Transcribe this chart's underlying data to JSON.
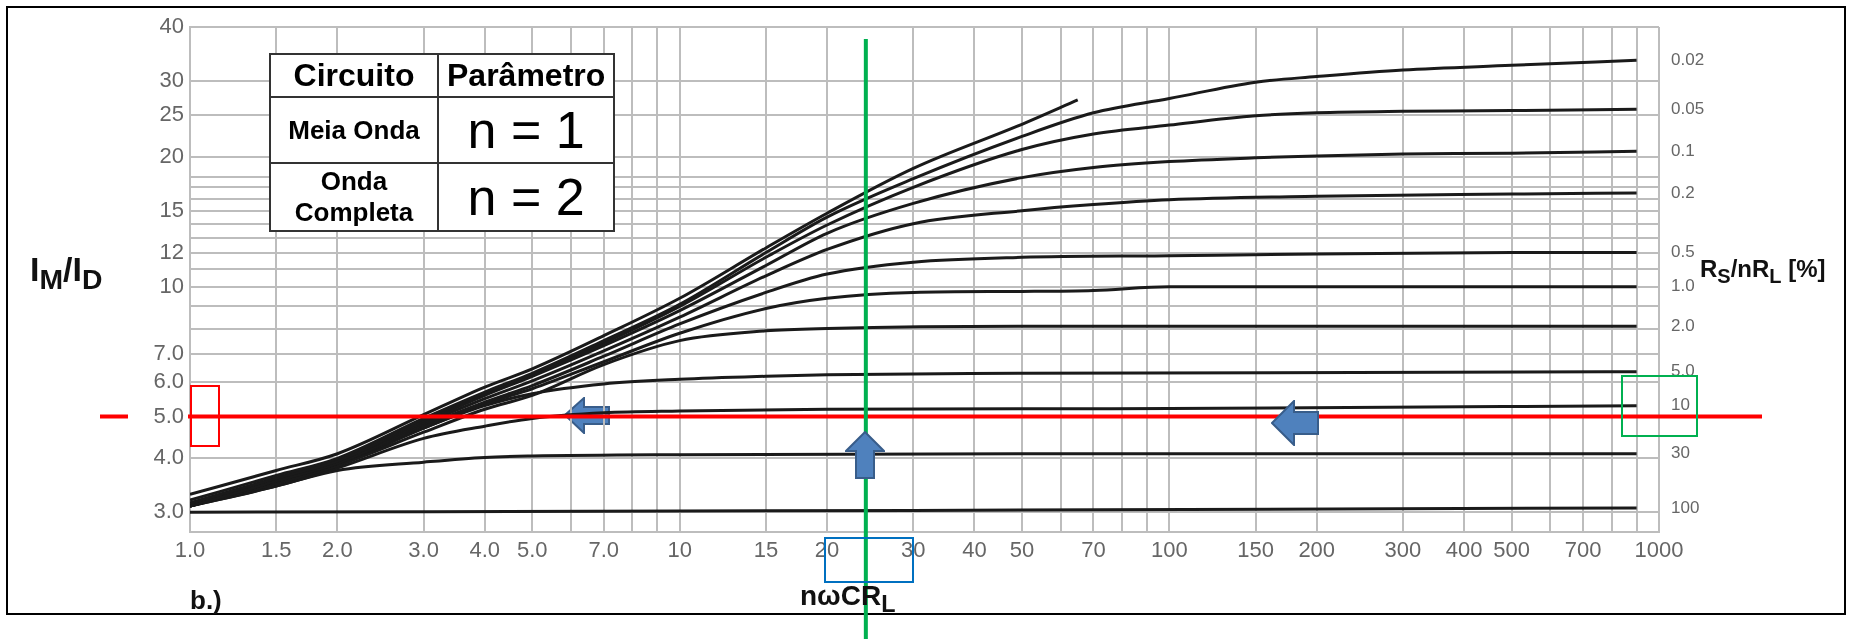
{
  "chart_data": {
    "type": "line",
    "xlabel": "nωCR$_{L}$",
    "ylabel": "I$_{M}$/I$_{D}$",
    "legend_title": "R$_{S}$/nR$_{L}$ [%]",
    "annotations": [
      "b.)",
      "Circuito",
      "Parâmetro",
      "Meia Onda",
      "n = 1",
      "Onda Completa",
      "n = 2"
    ],
    "log": "xy",
    "grid": true,
    "legend": false,
    "marker": "none",
    "line_style": "solid",
    "xlim": [
      1,
      1000
    ],
    "ylim": [
      2.7,
      40
    ],
    "xticks": [
      {
        "value": 1,
        "label": "1.0"
      },
      {
        "value": 1.5,
        "label": "1.5"
      },
      {
        "value": 2,
        "label": "2.0"
      },
      {
        "value": 3,
        "label": "3.0"
      },
      {
        "value": 4,
        "label": "4.0"
      },
      {
        "value": 5,
        "label": "5.0"
      },
      {
        "value": 6,
        "label": null
      },
      {
        "value": 7,
        "label": "7.0"
      },
      {
        "value": 8,
        "label": null
      },
      {
        "value": 9,
        "label": null
      },
      10,
      15,
      20,
      30,
      40,
      50,
      {
        "value": 60,
        "label": null
      },
      70,
      {
        "value": 80,
        "label": null
      },
      {
        "value": 90,
        "label": null
      },
      100,
      150,
      200,
      300,
      400,
      500,
      {
        "value": 600,
        "label": null
      },
      700,
      {
        "value": 800,
        "label": null
      },
      {
        "value": 900,
        "label": null
      },
      1000
    ],
    "yticks": [
      {
        "value": 3,
        "label": "3.0"
      },
      {
        "value": 4,
        "label": "4.0"
      },
      {
        "value": 5,
        "label": "5.0"
      },
      {
        "value": 6,
        "label": "6.0"
      },
      {
        "value": 7,
        "label": "7.0"
      },
      {
        "value": 8,
        "label": null
      },
      {
        "value": 9,
        "label": null
      },
      10,
      {
        "value": 11,
        "label": null
      },
      12,
      {
        "value": 13,
        "label": null
      },
      {
        "value": 14,
        "label": null
      },
      15,
      {
        "value": 16,
        "label": null
      },
      {
        "value": 17,
        "label": null
      },
      {
        "value": 18,
        "label": null
      },
      20,
      25,
      30,
      40
    ],
    "ref_lines": [
      {
        "axis": "y",
        "value": 5,
        "color": "#ff0000"
      },
      {
        "axis": "x",
        "value": 24,
        "color": "#00b050"
      }
    ],
    "series": [
      {
        "color": "#1a1a1a",
        "x": [
          1,
          1.5,
          2,
          3,
          4,
          5,
          7,
          10,
          15,
          20,
          30,
          50,
          65
        ],
        "values": [
          3.3,
          3.75,
          4.1,
          5.05,
          5.85,
          6.45,
          7.7,
          9.4,
          12.3,
          14.8,
          18.8,
          23.8,
          27.1
        ]
      },
      {
        "name": "0.02",
        "color": "#1a1a1a",
        "x": [
          1,
          1.5,
          2,
          3,
          4,
          5,
          7,
          10,
          15,
          20,
          30,
          50,
          70,
          100,
          150,
          200,
          300,
          500,
          900
        ],
        "values": [
          3.2,
          3.65,
          4.0,
          4.95,
          5.7,
          6.3,
          7.5,
          9.1,
          12.0,
          14.5,
          17.8,
          22.3,
          25.3,
          27.3,
          29.8,
          30.7,
          31.8,
          32.6,
          33.5
        ]
      },
      {
        "name": "0.05",
        "color": "#1a1a1a",
        "x": [
          1,
          1.5,
          2,
          3,
          4,
          5,
          7,
          10,
          15,
          20,
          30,
          50,
          70,
          100,
          150,
          200,
          300,
          500,
          900
        ],
        "values": [
          3.15,
          3.6,
          3.95,
          4.9,
          5.65,
          6.25,
          7.4,
          9.0,
          11.7,
          13.9,
          17.0,
          20.8,
          22.6,
          23.7,
          24.9,
          25.3,
          25.5,
          25.6,
          25.8
        ]
      },
      {
        "name": "0.1",
        "color": "#1a1a1a",
        "x": [
          1,
          1.5,
          2,
          3,
          4,
          5,
          7,
          10,
          15,
          20,
          30,
          50,
          70,
          100,
          150,
          200,
          300,
          500,
          900
        ],
        "values": [
          3.15,
          3.6,
          3.95,
          4.85,
          5.6,
          6.2,
          7.3,
          8.8,
          11.2,
          13.3,
          15.6,
          17.9,
          18.9,
          19.5,
          19.9,
          20.1,
          20.3,
          20.4,
          20.6
        ]
      },
      {
        "name": "0.2",
        "color": "#1a1a1a",
        "x": [
          1,
          1.5,
          2,
          3,
          4,
          5,
          7,
          10,
          15,
          20,
          30,
          50,
          70,
          100,
          200,
          500,
          900
        ],
        "values": [
          3.1,
          3.55,
          3.9,
          4.8,
          5.5,
          6.05,
          7.1,
          8.5,
          10.6,
          12.2,
          14.0,
          15.0,
          15.5,
          15.9,
          16.2,
          16.4,
          16.5
        ]
      },
      {
        "name": "0.5",
        "color": "#1a1a1a",
        "x": [
          1,
          1.5,
          2,
          3,
          4,
          5,
          7,
          10,
          15,
          20,
          30,
          50,
          100,
          200,
          500,
          900
        ],
        "values": [
          3.1,
          3.55,
          3.9,
          4.75,
          5.4,
          5.9,
          6.9,
          8.2,
          9.7,
          10.7,
          11.4,
          11.7,
          11.8,
          11.9,
          12.0,
          12.0
        ]
      },
      {
        "name": "1.0",
        "color": "#1a1a1a",
        "x": [
          1,
          1.5,
          2,
          3,
          4,
          5,
          7,
          10,
          15,
          20,
          30,
          50,
          70,
          100,
          900
        ],
        "values": [
          3.1,
          3.55,
          3.9,
          4.7,
          5.35,
          5.8,
          6.7,
          7.8,
          8.9,
          9.4,
          9.7,
          9.75,
          9.8,
          10.0,
          10.0
        ]
      },
      {
        "name": "2.0",
        "color": "#1a1a1a",
        "x": [
          1,
          1.5,
          2,
          3,
          4,
          5,
          7,
          10,
          15,
          20,
          50,
          900
        ],
        "values": [
          3.1,
          3.5,
          3.85,
          4.6,
          5.2,
          5.6,
          6.6,
          7.5,
          7.9,
          8.0,
          8.1,
          8.1
        ]
      },
      {
        "name": "5.0",
        "color": "#1a1a1a",
        "x": [
          1,
          1.5,
          2,
          3,
          4,
          5,
          7,
          10,
          15,
          20,
          50,
          900
        ],
        "values": [
          3.1,
          3.5,
          3.85,
          4.7,
          5.3,
          5.65,
          5.95,
          6.1,
          6.2,
          6.25,
          6.3,
          6.35
        ]
      },
      {
        "name": "10",
        "color": "#1a1a1a",
        "x": [
          1,
          1.5,
          2,
          3,
          4,
          5,
          7,
          10,
          20,
          100,
          900
        ],
        "values": [
          3.1,
          3.45,
          3.8,
          4.45,
          4.75,
          4.95,
          5.1,
          5.15,
          5.2,
          5.22,
          5.3
        ]
      },
      {
        "name": "30",
        "color": "#1a1a1a",
        "x": [
          1,
          1.5,
          2,
          3,
          4,
          5,
          10,
          50,
          900
        ],
        "values": [
          3.1,
          3.45,
          3.75,
          3.92,
          4.02,
          4.05,
          4.08,
          4.1,
          4.1
        ]
      },
      {
        "name": "100",
        "color": "#1a1a1a",
        "x": [
          1,
          30,
          900
        ],
        "values": [
          3.0,
          3.03,
          3.07
        ]
      }
    ]
  }
}
